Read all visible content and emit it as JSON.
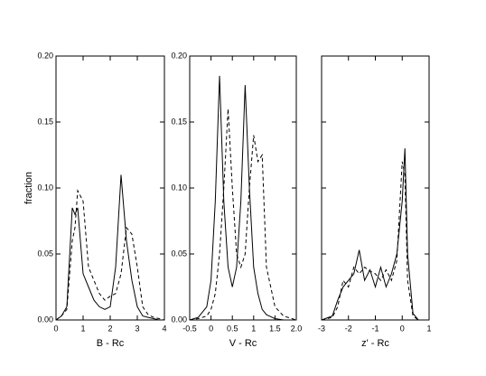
{
  "chart_data": [
    {
      "type": "line",
      "xlabel": "B - Rc",
      "ylabel": "fraction",
      "xlim": [
        0,
        4
      ],
      "xticks": [
        0,
        1,
        2,
        3,
        4
      ],
      "ylim": [
        0,
        0.2
      ],
      "yticks": [
        {
          "value": 0,
          "label": "0.00"
        },
        {
          "value": 0.05,
          "label": "0.05"
        },
        {
          "value": 0.1,
          "label": "0.10"
        },
        {
          "value": 0.15,
          "label": "0.15"
        },
        {
          "value": 0.2,
          "label": "0.20"
        }
      ],
      "x": [
        0,
        0.2,
        0.4,
        0.6,
        0.7,
        0.8,
        1.0,
        1.2,
        1.4,
        1.6,
        1.8,
        2.0,
        2.2,
        2.4,
        2.6,
        2.8,
        3.0,
        3.2,
        3.4,
        3.6,
        3.8,
        4.0
      ],
      "series": [
        {
          "color": "#000000",
          "dashed": false,
          "values": [
            0,
            0.003,
            0.01,
            0.085,
            0.08,
            0.085,
            0.035,
            0.025,
            0.015,
            0.01,
            0.008,
            0.01,
            0.04,
            0.11,
            0.06,
            0.03,
            0.01,
            0.003,
            0.002,
            0.001,
            0,
            0
          ]
        },
        {
          "color": "#000000",
          "dashed": true,
          "values": [
            0,
            0.003,
            0.008,
            0.06,
            0.07,
            0.098,
            0.09,
            0.04,
            0.03,
            0.02,
            0.015,
            0.018,
            0.02,
            0.035,
            0.07,
            0.065,
            0.04,
            0.01,
            0.004,
            0.002,
            0.001,
            0
          ]
        }
      ]
    },
    {
      "type": "line",
      "xlabel": "V - Rc",
      "xlim": [
        -0.5,
        2
      ],
      "xticks": [
        -0.5,
        0,
        0.5,
        1,
        1.5,
        {
          "value": 2,
          "label": "2.0"
        }
      ],
      "ylim": [
        0,
        0.2
      ],
      "yticks": [
        {
          "value": 0,
          "label": "0.00"
        },
        {
          "value": 0.05,
          "label": "0.05"
        },
        {
          "value": 0.1,
          "label": "0.10"
        },
        {
          "value": 0.15,
          "label": "0.15"
        },
        {
          "value": 0.2,
          "label": "0.20"
        }
      ],
      "x": [
        -0.5,
        -0.3,
        -0.1,
        0,
        0.1,
        0.2,
        0.3,
        0.4,
        0.5,
        0.6,
        0.7,
        0.8,
        0.9,
        1.0,
        1.1,
        1.2,
        1.3,
        1.5,
        1.7,
        2.0
      ],
      "series": [
        {
          "color": "#000000",
          "dashed": false,
          "values": [
            0,
            0.002,
            0.01,
            0.03,
            0.09,
            0.185,
            0.09,
            0.04,
            0.025,
            0.04,
            0.09,
            0.178,
            0.1,
            0.04,
            0.02,
            0.008,
            0.004,
            0.001,
            0,
            0
          ]
        },
        {
          "color": "#000000",
          "dashed": true,
          "values": [
            0,
            0.001,
            0.003,
            0.008,
            0.02,
            0.05,
            0.1,
            0.16,
            0.1,
            0.05,
            0.04,
            0.05,
            0.1,
            0.14,
            0.12,
            0.125,
            0.04,
            0.01,
            0.003,
            0
          ]
        }
      ]
    },
    {
      "type": "line",
      "xlabel": "z' - Rc",
      "xlim": [
        -3,
        1
      ],
      "xticks": [
        -3,
        -2,
        -1,
        0,
        1
      ],
      "ylim": [
        0,
        0.2
      ],
      "yticks": [
        0,
        0.05,
        0.1,
        0.15,
        0.2
      ],
      "ytick_labels": false,
      "x": [
        -3,
        -2.6,
        -2.4,
        -2.2,
        -2,
        -1.8,
        -1.6,
        -1.4,
        -1.2,
        -1,
        -0.8,
        -0.6,
        -0.4,
        -0.2,
        0,
        0.1,
        0.2,
        0.4,
        0.6,
        1
      ],
      "series": [
        {
          "color": "#000000",
          "dashed": false,
          "values": [
            0,
            0.003,
            0.015,
            0.025,
            0.03,
            0.035,
            0.053,
            0.03,
            0.038,
            0.025,
            0.04,
            0.025,
            0.035,
            0.05,
            0.09,
            0.13,
            0.05,
            0.005,
            0,
            0
          ]
        },
        {
          "color": "#000000",
          "dashed": true,
          "values": [
            0,
            0.002,
            0.01,
            0.03,
            0.025,
            0.04,
            0.035,
            0.04,
            0.037,
            0.035,
            0.03,
            0.038,
            0.03,
            0.045,
            0.12,
            0.11,
            0.03,
            0.003,
            0,
            0
          ]
        }
      ]
    }
  ]
}
